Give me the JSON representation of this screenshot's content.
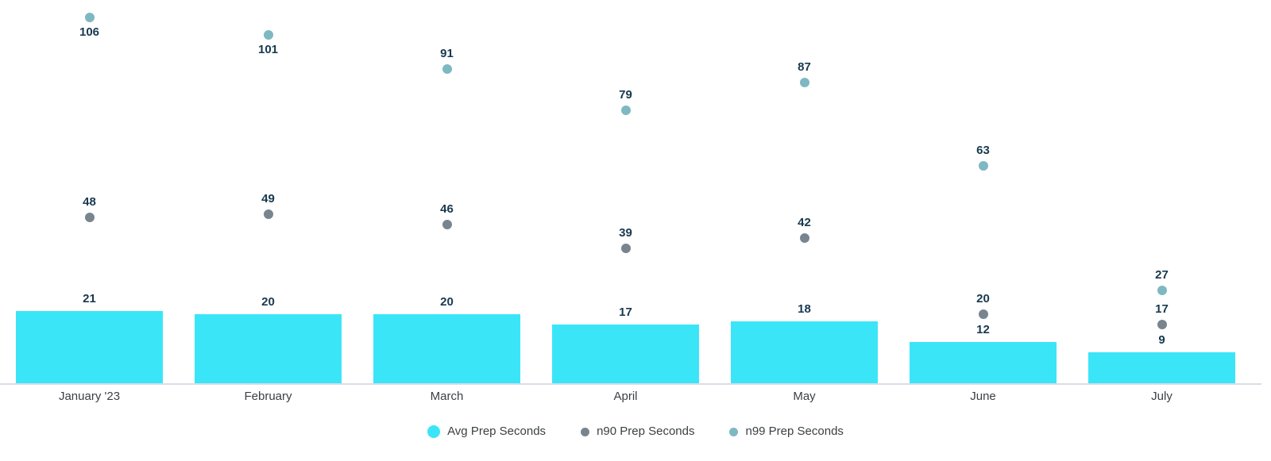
{
  "chart_data": {
    "type": "bar",
    "title": "",
    "xlabel": "",
    "ylabel": "",
    "categories": [
      "January '23",
      "February",
      "March",
      "April",
      "May",
      "June",
      "July"
    ],
    "series": [
      {
        "name": "Avg Prep Seconds",
        "mark": "bar",
        "color": "#3be5f8",
        "values": [
          21,
          20,
          20,
          17,
          18,
          12,
          9
        ]
      },
      {
        "name": "n90 Prep Seconds",
        "mark": "point",
        "color": "#78858f",
        "values": [
          48,
          49,
          46,
          39,
          42,
          20,
          17
        ]
      },
      {
        "name": "n99 Prep Seconds",
        "mark": "point",
        "color": "#7eb8c2",
        "values": [
          106,
          101,
          91,
          79,
          87,
          63,
          27
        ]
      }
    ],
    "ylim": [
      0,
      111
    ],
    "grid": false,
    "y_axis_visible": false,
    "legend_position": "bottom",
    "value_labels": true,
    "value_label_color": "#17394f",
    "axis_text_color": "#3c4043",
    "baseline_color": "#d8dde6"
  }
}
